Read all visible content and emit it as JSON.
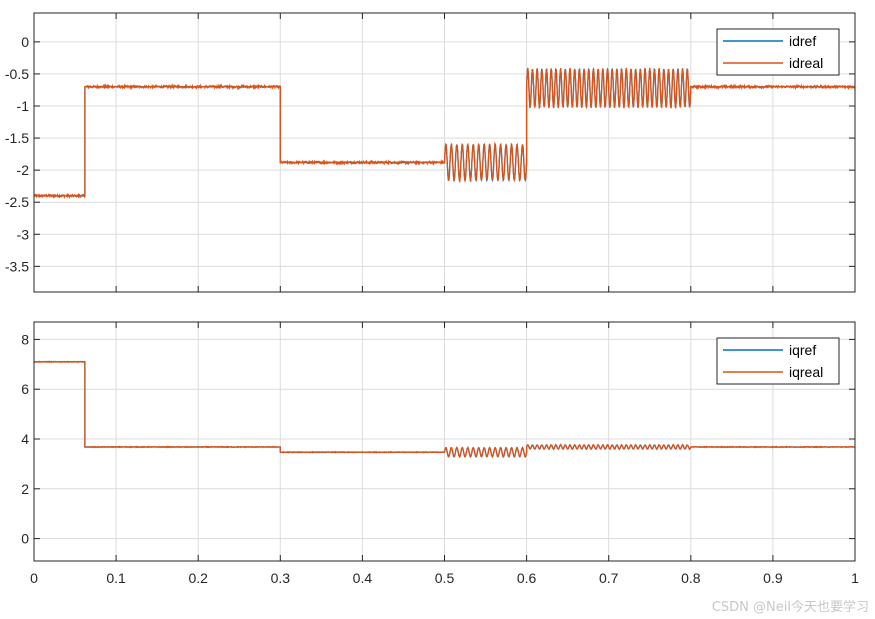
{
  "chart_data": [
    {
      "type": "line",
      "xlim": [
        0,
        1
      ],
      "ylim": [
        -3.9,
        0.45
      ],
      "xticks": [
        0,
        0.1,
        0.2,
        0.3,
        0.4,
        0.5,
        0.6,
        0.7,
        0.8,
        0.9,
        1
      ],
      "xtick_labels": [],
      "yticks": [
        0,
        -0.5,
        -1,
        -1.5,
        -2,
        -2.5,
        -3,
        -3.5
      ],
      "ytick_labels": [
        "0",
        "-0.5",
        "-1",
        "-1.5",
        "-2",
        "-2.5",
        "-3",
        "-3.5"
      ],
      "grid": true,
      "legend_position": "top-right",
      "series": [
        {
          "name": "idref",
          "color": "#0072BD",
          "segments": [
            {
              "x0": 0,
              "x1": 0.062,
              "level": -2.4
            },
            {
              "x0": 0.062,
              "x1": 0.3,
              "level": -0.7
            },
            {
              "x0": 0.3,
              "x1": 0.5,
              "level": -1.88
            },
            {
              "x0": 0.5,
              "x1": 0.6,
              "level": -1.88,
              "oscillation": 0.28,
              "cycles": 15
            },
            {
              "x0": 0.6,
              "x1": 0.8,
              "level": -0.72,
              "oscillation": 0.3,
              "cycles": 35
            },
            {
              "x0": 0.8,
              "x1": 1.0,
              "level": -0.7
            }
          ]
        },
        {
          "name": "idreal",
          "color": "#D95319",
          "segments": [
            {
              "x0": 0,
              "x1": 0.062,
              "level": -2.4
            },
            {
              "x0": 0.062,
              "x1": 0.3,
              "level": -0.7
            },
            {
              "x0": 0.3,
              "x1": 0.5,
              "level": -1.88
            },
            {
              "x0": 0.5,
              "x1": 0.6,
              "level": -1.88,
              "oscillation": 0.28,
              "cycles": 15
            },
            {
              "x0": 0.6,
              "x1": 0.8,
              "level": -0.72,
              "oscillation": 0.3,
              "cycles": 35
            },
            {
              "x0": 0.8,
              "x1": 1.0,
              "level": -0.7
            }
          ]
        }
      ]
    },
    {
      "type": "line",
      "xlim": [
        0,
        1
      ],
      "ylim": [
        -0.9,
        8.7
      ],
      "xticks": [
        0,
        0.1,
        0.2,
        0.3,
        0.4,
        0.5,
        0.6,
        0.7,
        0.8,
        0.9,
        1
      ],
      "xtick_labels": [
        "0",
        "0.1",
        "0.2",
        "0.3",
        "0.4",
        "0.5",
        "0.6",
        "0.7",
        "0.8",
        "0.9",
        "1"
      ],
      "yticks": [
        0,
        2,
        4,
        6,
        8
      ],
      "ytick_labels": [
        "0",
        "2",
        "4",
        "6",
        "8"
      ],
      "grid": true,
      "legend_position": "top-right",
      "series": [
        {
          "name": "iqref",
          "color": "#0072BD",
          "segments": [
            {
              "x0": 0,
              "x1": 0.062,
              "level": 7.1
            },
            {
              "x0": 0.062,
              "x1": 0.3,
              "level": 3.68
            },
            {
              "x0": 0.3,
              "x1": 0.5,
              "level": 3.47
            },
            {
              "x0": 0.5,
              "x1": 0.6,
              "level": 3.47,
              "oscillation": 0.18,
              "cycles": 15
            },
            {
              "x0": 0.6,
              "x1": 0.8,
              "level": 3.68,
              "oscillation": 0.08,
              "cycles": 35
            },
            {
              "x0": 0.8,
              "x1": 1.0,
              "level": 3.68
            }
          ]
        },
        {
          "name": "iqreal",
          "color": "#D95319",
          "segments": [
            {
              "x0": 0,
              "x1": 0.062,
              "level": 7.1
            },
            {
              "x0": 0.062,
              "x1": 0.3,
              "level": 3.68
            },
            {
              "x0": 0.3,
              "x1": 0.5,
              "level": 3.47
            },
            {
              "x0": 0.5,
              "x1": 0.6,
              "level": 3.47,
              "oscillation": 0.18,
              "cycles": 15
            },
            {
              "x0": 0.6,
              "x1": 0.8,
              "level": 3.68,
              "oscillation": 0.08,
              "cycles": 35
            },
            {
              "x0": 0.8,
              "x1": 1.0,
              "level": 3.68
            }
          ]
        }
      ]
    }
  ],
  "watermark": "CSDN @Neil今天也要学习"
}
